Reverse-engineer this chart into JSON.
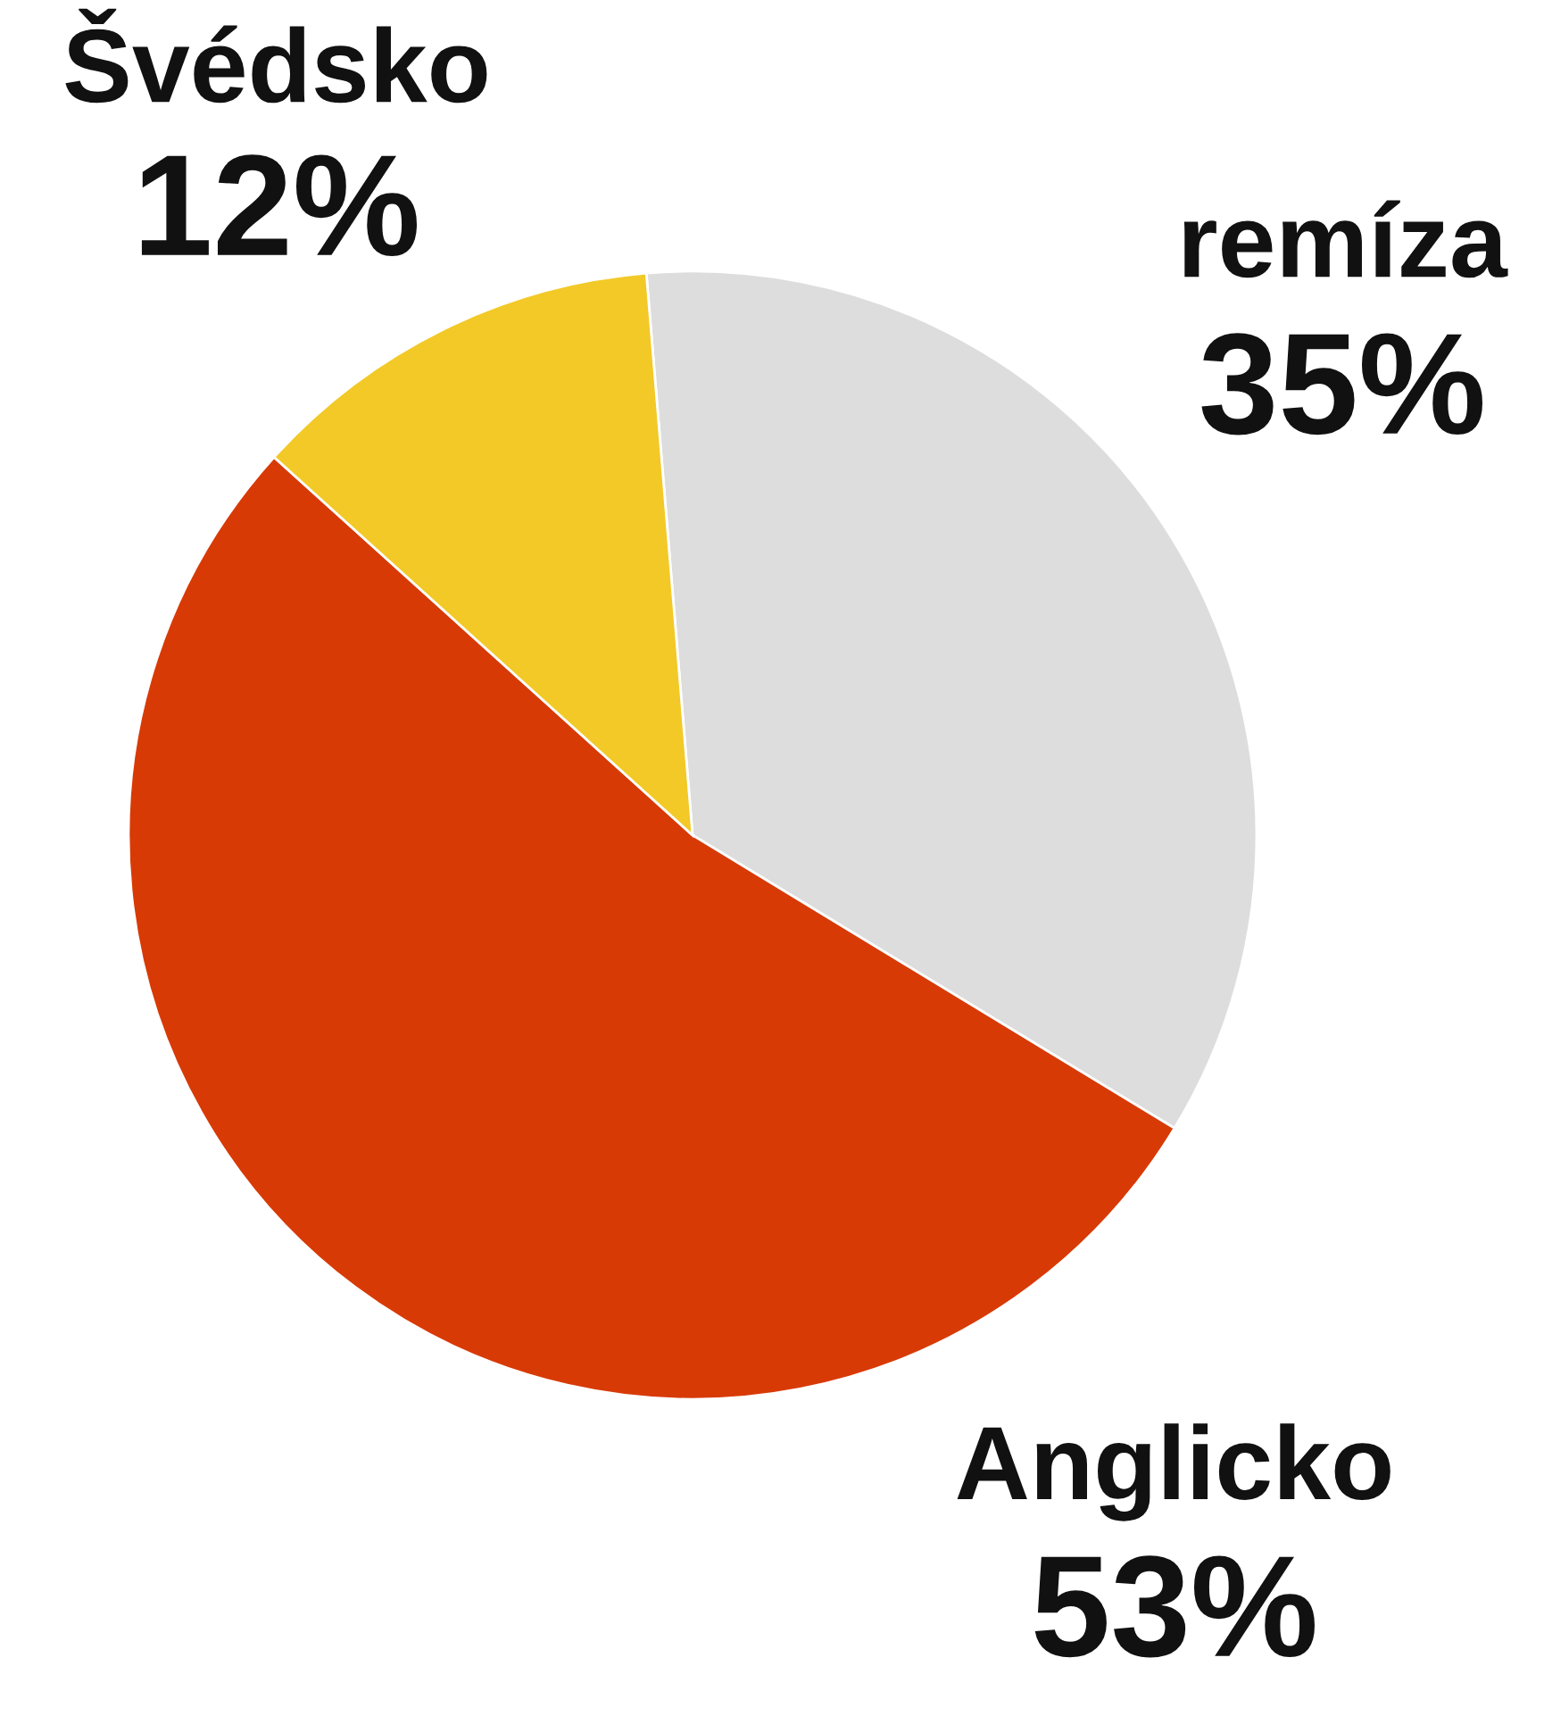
{
  "chart_data": {
    "type": "pie",
    "categories": [
      "remíza",
      "Anglicko",
      "Švédsko"
    ],
    "values": [
      35,
      53,
      12
    ],
    "value_labels": [
      "35%",
      "53%",
      "12%"
    ],
    "colors": [
      "#dddddd",
      "#d83a06",
      "#f2c927"
    ]
  }
}
